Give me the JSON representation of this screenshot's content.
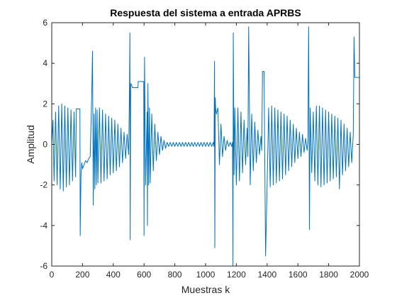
{
  "figure": {
    "background": "#ffffff"
  },
  "chart_data": {
    "type": "line",
    "title": "Respuesta del sistema a entrada APRBS",
    "xlabel": "Muestras k",
    "ylabel": "Amplitud",
    "xlim": [
      0,
      2000
    ],
    "ylim": [
      -6,
      6
    ],
    "xticks": [
      0,
      200,
      400,
      600,
      800,
      1000,
      1200,
      1400,
      1600,
      1800,
      2000
    ],
    "yticks": [
      -6,
      -4,
      -2,
      0,
      2,
      4,
      6
    ],
    "xtick_labels": [
      "0",
      "200",
      "400",
      "600",
      "800",
      "1000",
      "1200",
      "1400",
      "1600",
      "1800",
      "2000"
    ],
    "ytick_labels": [
      "-6",
      "-4",
      "-2",
      "0",
      "2",
      "4",
      "6"
    ],
    "grid": false,
    "box": true,
    "axis_color": "#262626",
    "series": [
      {
        "color": "#0072bd",
        "x": [
          0,
          8,
          15,
          25,
          35,
          45,
          55,
          65,
          75,
          85,
          95,
          105,
          115,
          125,
          135,
          145,
          155,
          160,
          165,
          170,
          175,
          180,
          183,
          185,
          190,
          195,
          200,
          210,
          220,
          230,
          240,
          250,
          260,
          265,
          270,
          275,
          280,
          285,
          290,
          295,
          300,
          310,
          320,
          330,
          340,
          350,
          360,
          370,
          380,
          390,
          400,
          410,
          420,
          430,
          440,
          450,
          460,
          470,
          480,
          490,
          500,
          505,
          508,
          510,
          513,
          515,
          520,
          525,
          530,
          535,
          545,
          560,
          562,
          565,
          568,
          570,
          575,
          580,
          590,
          598,
          600,
          603,
          610,
          620,
          622,
          625,
          630,
          635,
          640,
          650,
          660,
          670,
          680,
          690,
          700,
          710,
          720,
          730,
          740,
          750,
          760,
          770,
          780,
          790,
          800,
          810,
          820,
          830,
          840,
          850,
          860,
          870,
          880,
          890,
          900,
          910,
          920,
          930,
          940,
          950,
          960,
          970,
          980,
          990,
          1000,
          1010,
          1020,
          1030,
          1040,
          1050,
          1055,
          1058,
          1060,
          1063,
          1065,
          1070,
          1080,
          1090,
          1100,
          1110,
          1120,
          1130,
          1140,
          1150,
          1160,
          1170,
          1175,
          1178,
          1180,
          1185,
          1190,
          1200,
          1210,
          1220,
          1230,
          1240,
          1250,
          1260,
          1270,
          1275,
          1280,
          1290,
          1300,
          1310,
          1320,
          1330,
          1340,
          1350,
          1360,
          1365,
          1370,
          1375,
          1380,
          1390,
          1400,
          1410,
          1420,
          1430,
          1440,
          1450,
          1460,
          1470,
          1480,
          1490,
          1500,
          1510,
          1520,
          1530,
          1540,
          1550,
          1560,
          1570,
          1580,
          1590,
          1600,
          1610,
          1620,
          1630,
          1640,
          1650,
          1660,
          1665,
          1668,
          1670,
          1675,
          1680,
          1690,
          1700,
          1710,
          1720,
          1730,
          1740,
          1750,
          1760,
          1770,
          1780,
          1790,
          1800,
          1810,
          1820,
          1830,
          1840,
          1850,
          1860,
          1870,
          1880,
          1890,
          1900,
          1910,
          1920,
          1930,
          1940,
          1950,
          1960,
          1965,
          1970,
          1975,
          1980,
          1985,
          1990,
          2000
        ],
        "y": [
          0,
          1.2,
          -1.8,
          1.6,
          -2.0,
          1.9,
          -2.2,
          2.0,
          -2.3,
          1.9,
          -2.1,
          1.8,
          -2.0,
          1.7,
          -1.8,
          1.6,
          -1.6,
          1.75,
          1.75,
          1.75,
          1.75,
          1.75,
          1.75,
          -4.5,
          -1.5,
          -0.9,
          -1.2,
          -1.0,
          -0.8,
          -0.9,
          -0.7,
          -0.6,
          2.5,
          4.6,
          -3.0,
          1.5,
          -2.2,
          1.8,
          -2.0,
          1.7,
          -1.9,
          1.8,
          -1.9,
          1.7,
          -1.8,
          1.5,
          -1.7,
          1.4,
          -1.5,
          1.3,
          -1.4,
          1.2,
          -1.3,
          1.0,
          -1.1,
          0.8,
          -0.9,
          0.6,
          -0.7,
          0.5,
          -0.5,
          2.6,
          5.5,
          -4.7,
          2.9,
          3.0,
          2.9,
          2.8,
          2.8,
          2.8,
          2.8,
          2.8,
          3.1,
          3.1,
          3.1,
          3.1,
          3.1,
          3.1,
          3.1,
          3.1,
          -4.5,
          4.3,
          -2.0,
          1.6,
          -4.0,
          3.0,
          -2.0,
          1.8,
          -1.9,
          1.5,
          -1.3,
          1.0,
          -0.8,
          0.6,
          -0.5,
          0.4,
          -0.3,
          0.2,
          -0.2,
          0.1,
          -0.1,
          0.1,
          -0.1,
          0.1,
          -0.1,
          0.1,
          -0.1,
          0.1,
          -0.1,
          0.1,
          -0.1,
          0.1,
          -0.1,
          0.1,
          -0.1,
          0.1,
          -0.1,
          0.1,
          -0.1,
          0.1,
          -0.1,
          0.1,
          -0.1,
          0.1,
          -0.1,
          0.1,
          -0.1,
          0.1,
          -0.1,
          0.1,
          -0.1,
          4.1,
          -5.1,
          2.3,
          1.8,
          1.5,
          1.8,
          -1.0,
          1.0,
          -0.6,
          0.4,
          -0.3,
          0.2,
          -0.1,
          0.1,
          -0.1,
          0.1,
          -6.0,
          5.5,
          -1.5,
          1.8,
          -2.0,
          1.8,
          -1.8,
          1.6,
          -1.4,
          1.2,
          -1.0,
          0.8,
          -0.6,
          5.8,
          -2.0,
          1.5,
          -1.3,
          1.1,
          -0.9,
          0.7,
          -0.5,
          0.4,
          -0.3,
          3.6,
          3.6,
          3.6,
          -5.5,
          -2.0,
          1.8,
          -2.1,
          1.9,
          -2.0,
          1.8,
          -1.9,
          1.7,
          -1.8,
          1.6,
          -1.7,
          1.5,
          -1.5,
          1.4,
          -1.3,
          1.2,
          -1.1,
          1.0,
          -0.9,
          0.8,
          -0.7,
          0.6,
          -0.6,
          0.5,
          -0.4,
          0.3,
          -0.3,
          0.2,
          3.8,
          5.8,
          -4.2,
          1.8,
          -1.4,
          1.6,
          -1.8,
          1.9,
          -2.0,
          1.9,
          -2.1,
          1.8,
          -2.0,
          1.7,
          -1.9,
          1.6,
          -1.8,
          1.5,
          -1.7,
          1.4,
          -1.6,
          1.3,
          -2.2,
          1.2,
          -1.5,
          1.0,
          -1.3,
          0.8,
          -1.1,
          0.6,
          -0.9,
          0.5,
          5.3,
          3.3,
          3.3,
          3.3,
          3.3,
          3.3,
          3.3
        ]
      }
    ]
  }
}
